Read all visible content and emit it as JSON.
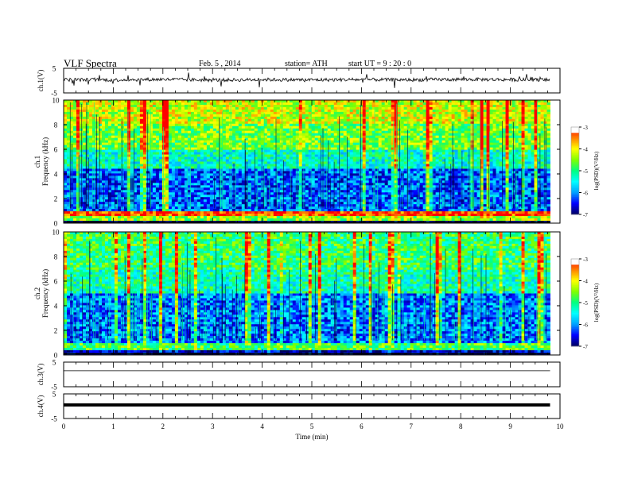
{
  "header": {
    "title": "VLF  Spectra",
    "date": "Feb. 5  , 2014",
    "station": "station= ATH",
    "start_ut": "start  UT  =   9  : 20 : 0"
  },
  "chart_data": [
    {
      "type": "line",
      "name": "ch1-waveform",
      "ylabel": "ch.1(V)",
      "ylim": [
        -5,
        5
      ],
      "yticks": [
        "5",
        "-5"
      ],
      "x": [
        0,
        1,
        2,
        3,
        4,
        5,
        6,
        7,
        8,
        9,
        9.8
      ],
      "y": [
        0.4,
        0.3,
        0.5,
        0.2,
        0.4,
        0.3,
        0.4,
        0.3,
        0.5,
        0.4,
        0.3
      ],
      "color": "#000000"
    },
    {
      "type": "heatmap",
      "name": "ch1-spectrogram",
      "ylabel": "ch.1\nFrequency  (kHz)",
      "ylim": [
        0,
        10
      ],
      "yticks": [
        "0",
        "2",
        "4",
        "6",
        "8",
        "10"
      ],
      "xlim": [
        0,
        10
      ],
      "data_end_min": 9.8,
      "colorbar": {
        "label": "log(PSD)(V²/Hz)",
        "range": [
          -7,
          -3
        ],
        "ticks": [
          "-3",
          "-4",
          "-5",
          "-6",
          "-7"
        ]
      },
      "bands": [
        {
          "f_from": 0,
          "f_to": 0.2,
          "logpsd": -6.8
        },
        {
          "f_from": 0.2,
          "f_to": 0.6,
          "logpsd": -4.5
        },
        {
          "f_from": 0.6,
          "f_to": 1.0,
          "logpsd": -3.2
        },
        {
          "f_from": 1.0,
          "f_to": 4.5,
          "logpsd": -6.2
        },
        {
          "f_from": 4.5,
          "f_to": 6.0,
          "logpsd": -5.3
        },
        {
          "f_from": 6.0,
          "f_to": 8.0,
          "logpsd": -4.6
        },
        {
          "f_from": 8.0,
          "f_to": 10.0,
          "logpsd": -4.2
        }
      ]
    },
    {
      "type": "heatmap",
      "name": "ch2-spectrogram",
      "ylabel": "ch.2\nFrequency  (kHz)",
      "ylim": [
        0,
        10
      ],
      "yticks": [
        "0",
        "2",
        "4",
        "6",
        "8",
        "10"
      ],
      "xlim": [
        0,
        10
      ],
      "data_end_min": 9.8,
      "colorbar": {
        "label": "log(PSD)(V²/Hz)",
        "range": [
          -7,
          -3
        ],
        "ticks": [
          "-3",
          "-4",
          "-5",
          "-6",
          "-7"
        ]
      },
      "bands": [
        {
          "f_from": 0,
          "f_to": 0.3,
          "logpsd": -6.8
        },
        {
          "f_from": 0.3,
          "f_to": 1.0,
          "logpsd": -4.8
        },
        {
          "f_from": 1.0,
          "f_to": 5.0,
          "logpsd": -6.1
        },
        {
          "f_from": 5.0,
          "f_to": 7.0,
          "logpsd": -5.2
        },
        {
          "f_from": 7.0,
          "f_to": 10.0,
          "logpsd": -4.9
        }
      ]
    },
    {
      "type": "line",
      "name": "ch3-waveform",
      "ylabel": "ch.3(V)",
      "ylim": [
        -5,
        5
      ],
      "yticks": [
        "5",
        "-5"
      ],
      "x": [
        0,
        9.8
      ],
      "y": [
        1.5,
        1.5
      ],
      "color": "#000000"
    },
    {
      "type": "line",
      "name": "ch4-waveform",
      "ylabel": "ch.4(V)",
      "ylim": [
        -5,
        5
      ],
      "yticks": [
        "5",
        "-5"
      ],
      "x": [
        0,
        9.8
      ],
      "y": [
        0.5,
        0.5
      ],
      "color": "#000000"
    }
  ],
  "xaxis": {
    "label": "Time  (min)",
    "ticks": [
      "0",
      "1",
      "2",
      "3",
      "4",
      "5",
      "6",
      "7",
      "8",
      "9",
      "10"
    ],
    "xlim": [
      0,
      10
    ]
  },
  "colors": {
    "colormap": [
      "#000060",
      "#0000ff",
      "#00a0ff",
      "#00ffff",
      "#00ff80",
      "#80ff00",
      "#ffff00",
      "#ff8000",
      "#ff0000",
      "#ffffff"
    ]
  }
}
